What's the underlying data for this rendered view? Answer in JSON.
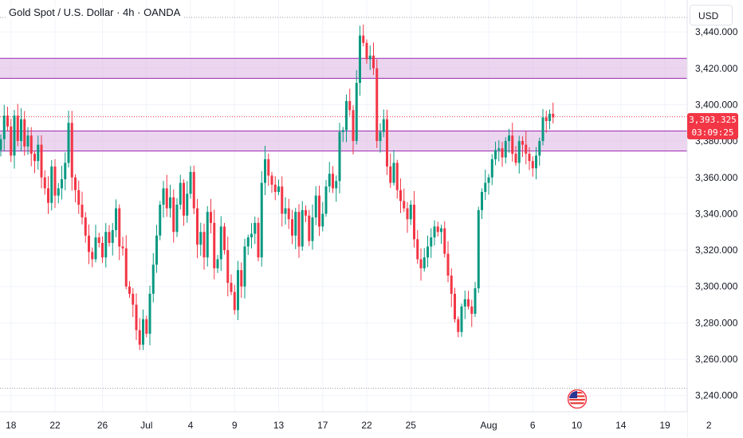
{
  "header": {
    "title": "Gold Spot / U.S. Dollar · 4h · OANDA",
    "currency": "USD"
  },
  "colors": {
    "up": "#089981",
    "down": "#f23645",
    "zone_fill": "#e1bee7",
    "zone_border": "#9c27b0",
    "grid": "#e0e3eb",
    "price_tag": "#f23645"
  },
  "price_tag": {
    "price": "3,393.325",
    "countdown": "03:09:25"
  },
  "event_marker": {
    "icon": "us-flag-icon"
  },
  "chart_data": {
    "type": "candlestick",
    "symbol": "Gold Spot / U.S. Dollar",
    "interval": "4h",
    "source": "OANDA",
    "ylim": [
      3232,
      3451
    ],
    "y_ticks": [
      "3,440.000",
      "3,420.000",
      "3,400.000",
      "3,380.000",
      "3,360.000",
      "3,340.000",
      "3,320.000",
      "3,300.000",
      "3,280.000",
      "3,260.000",
      "3,240.000"
    ],
    "y_tick_values": [
      3440,
      3420,
      3400,
      3380,
      3360,
      3340,
      3320,
      3300,
      3280,
      3260,
      3240
    ],
    "x_ticks": [
      "18",
      "22",
      "26",
      "Jul",
      "4",
      "9",
      "13",
      "17",
      "22",
      "25",
      "Aug",
      "6",
      "10",
      "14",
      "19",
      "2"
    ],
    "x_tick_index": [
      3,
      16,
      30,
      43,
      56,
      69,
      82,
      95,
      108,
      121,
      144,
      157,
      170,
      183,
      196,
      209
    ],
    "zones": [
      {
        "from": 3414.5,
        "to": 3425.5
      },
      {
        "from": 3374.5,
        "to": 3385.5
      }
    ],
    "dotted_lines": [
      3448,
      3244
    ],
    "current_price": 3393.325,
    "closes": [
      3381,
      3394,
      3388,
      3372,
      3394,
      3380,
      3392,
      3377,
      3383,
      3373,
      3369,
      3378,
      3360,
      3354,
      3346,
      3366,
      3350,
      3354,
      3359,
      3368,
      3390,
      3360,
      3353,
      3345,
      3338,
      3328,
      3319,
      3315,
      3327,
      3324,
      3316,
      3330,
      3324,
      3331,
      3343,
      3322,
      3321,
      3300,
      3296,
      3290,
      3276,
      3268,
      3282,
      3274,
      3296,
      3312,
      3328,
      3345,
      3354,
      3343,
      3349,
      3330,
      3345,
      3357,
      3339,
      3351,
      3363,
      3343,
      3323,
      3330,
      3316,
      3341,
      3335,
      3310,
      3315,
      3333,
      3320,
      3302,
      3297,
      3287,
      3309,
      3300,
      3322,
      3327,
      3329,
      3335,
      3316,
      3357,
      3370,
      3361,
      3356,
      3352,
      3355,
      3340,
      3343,
      3337,
      3328,
      3341,
      3322,
      3342,
      3339,
      3325,
      3338,
      3350,
      3333,
      3340,
      3355,
      3362,
      3354,
      3358,
      3385,
      3386,
      3402,
      3397,
      3380,
      3412,
      3438,
      3434,
      3425,
      3427,
      3420,
      3380,
      3385,
      3392,
      3366,
      3357,
      3368,
      3353,
      3347,
      3343,
      3337,
      3345,
      3326,
      3315,
      3310,
      3316,
      3322,
      3327,
      3333,
      3330,
      3332,
      3318,
      3306,
      3296,
      3282,
      3275,
      3289,
      3293,
      3289,
      3285,
      3299,
      3342,
      3352,
      3357,
      3360,
      3370,
      3375,
      3376,
      3371,
      3380,
      3383,
      3373,
      3368,
      3380,
      3378,
      3373,
      3369,
      3365,
      3372,
      3380,
      3393,
      3391,
      3395,
      3393
    ]
  }
}
